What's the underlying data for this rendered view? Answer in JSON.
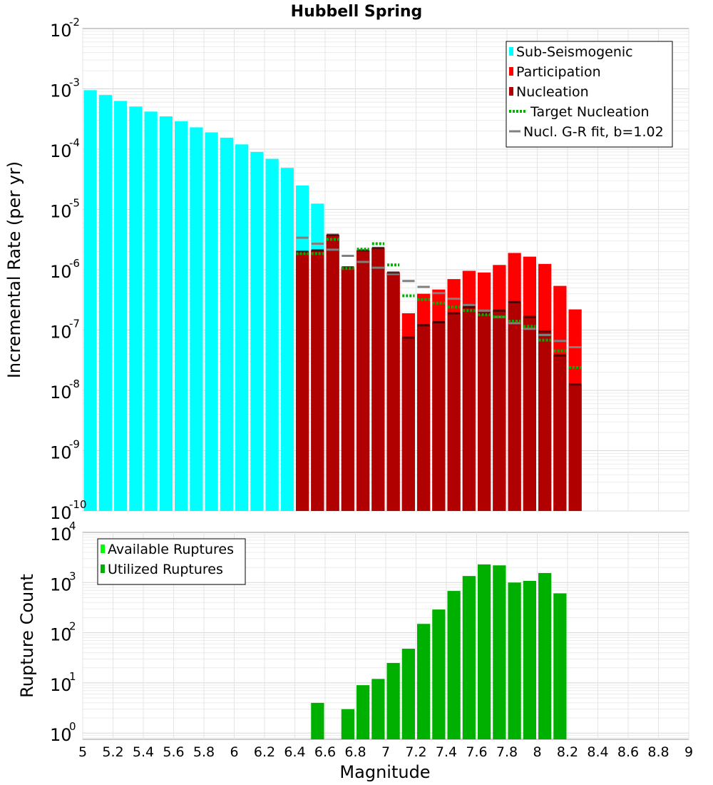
{
  "chart_data": [
    {
      "type": "bar",
      "title": "Hubbell Spring",
      "ylabel": "Incremental Rate (per yr)",
      "xlabel": "",
      "x_range": [
        5,
        9
      ],
      "ylim": [
        1e-10,
        0.01
      ],
      "y_scale": "log",
      "y_ticks": [
        {
          "base": "10",
          "exp": "-2",
          "value": 0.01
        },
        {
          "base": "10",
          "exp": "-3",
          "value": 0.001
        },
        {
          "base": "10",
          "exp": "-4",
          "value": 0.0001
        },
        {
          "base": "10",
          "exp": "-5",
          "value": 1e-05
        },
        {
          "base": "10",
          "exp": "-6",
          "value": 1e-06
        },
        {
          "base": "10",
          "exp": "-7",
          "value": 1e-07
        },
        {
          "base": "10",
          "exp": "-8",
          "value": 1e-08
        },
        {
          "base": "10",
          "exp": "-9",
          "value": 1e-09
        },
        {
          "base": "10",
          "exp": "-10",
          "value": 1e-10
        }
      ],
      "grid": true,
      "legend_position": "top-right",
      "legend": [
        {
          "label": "Sub-Seismogenic",
          "color": "#00ffff",
          "style": "bar"
        },
        {
          "label": "Participation",
          "color": "#ff0000",
          "style": "bar"
        },
        {
          "label": "Nucleation",
          "color": "#b00000",
          "style": "bar"
        },
        {
          "label": "Target Nucleation",
          "color": "#00b000",
          "style": "dotted"
        },
        {
          "label": "Nucl. G-R fit, b=1.02",
          "color": "#808080",
          "style": "line"
        }
      ],
      "colors": {
        "sub_seismogenic": "#00ffff",
        "participation": "#ff0000",
        "nucleation": "#b00000",
        "target": "#00b000",
        "gr_fit": "#808080",
        "nucl_marker": "#2a0000"
      },
      "bin_width": 0.1,
      "series": [
        {
          "id": "sub_seismogenic",
          "x": [
            5.05,
            5.15,
            5.25,
            5.35,
            5.45,
            5.55,
            5.65,
            5.75,
            5.85,
            5.95,
            6.05,
            6.15,
            6.25,
            6.35,
            6.45,
            6.55
          ],
          "values": [
            0.00095,
            0.00079,
            0.00063,
            0.00051,
            0.00042,
            0.00035,
            0.00029,
            0.00023,
            0.00019,
            0.000155,
            0.00012,
            9e-05,
            6.9e-05,
            4.9e-05,
            2.5e-05,
            1.25e-05
          ]
        },
        {
          "id": "participation",
          "x": [
            6.45,
            6.55,
            6.65,
            6.75,
            6.85,
            6.95,
            7.05,
            7.15,
            7.25,
            7.35,
            7.45,
            7.55,
            7.65,
            7.75,
            7.85,
            7.95,
            8.05,
            8.15,
            8.25
          ],
          "values": [
            2e-06,
            2.1e-06,
            3.8e-06,
            1.1e-06,
            2.1e-06,
            2.3e-06,
            9e-07,
            1.9e-07,
            4e-07,
            4.7e-07,
            7e-07,
            9.6e-07,
            9e-07,
            1.2e-06,
            1.9e-06,
            1.65e-06,
            1.25e-06,
            5.4e-07,
            2.2e-07
          ]
        },
        {
          "id": "nucleation",
          "x": [
            6.45,
            6.55,
            6.65,
            6.75,
            6.85,
            6.95,
            7.05,
            7.15,
            7.25,
            7.35,
            7.45,
            7.55,
            7.65,
            7.75,
            7.85,
            7.95,
            8.05,
            8.15,
            8.25
          ],
          "values": [
            2e-06,
            2.1e-06,
            3.8e-06,
            1.1e-06,
            2.1e-06,
            2.3e-06,
            9e-07,
            7.5e-08,
            1.2e-07,
            1.35e-07,
            1.9e-07,
            2.4e-07,
            1.9e-07,
            2.1e-07,
            2.9e-07,
            1.65e-07,
            9.5e-08,
            3.8e-08,
            1.25e-08
          ]
        },
        {
          "id": "target_nucleation",
          "x": [
            6.45,
            6.55,
            6.65,
            6.75,
            6.85,
            6.95,
            7.05,
            7.15,
            7.25,
            7.35,
            7.45,
            7.55,
            7.65,
            7.75,
            7.85,
            7.95,
            8.05,
            8.15,
            8.25
          ],
          "values": [
            1.85e-06,
            1.85e-06,
            3.2e-06,
            1.05e-06,
            2.2e-06,
            2.7e-06,
            1.2e-06,
            3.7e-07,
            3.2e-07,
            2.8e-07,
            2.4e-07,
            2.1e-07,
            1.8e-07,
            1.65e-07,
            1.4e-07,
            1.15e-07,
            6.8e-08,
            4.5e-08,
            2.4e-08
          ]
        },
        {
          "id": "gr_fit",
          "x": [
            6.45,
            6.55,
            6.65,
            6.75,
            6.85,
            6.95,
            7.05,
            7.15,
            7.25,
            7.35,
            7.45,
            7.55,
            7.65,
            7.75,
            7.85,
            7.95,
            8.05,
            8.15,
            8.25
          ],
          "values": [
            3.4e-06,
            2.7e-06,
            2.15e-06,
            1.7e-06,
            1.35e-06,
            1.08e-06,
            8.5e-07,
            6.5e-07,
            5.2e-07,
            4.1e-07,
            3.3e-07,
            2.6e-07,
            2.1e-07,
            1.65e-07,
            1.3e-07,
            1.05e-07,
            8.3e-08,
            6.6e-08,
            5.2e-08
          ]
        }
      ]
    },
    {
      "type": "bar",
      "title": "",
      "ylabel": "Rupture Count",
      "xlabel": "Magnitude",
      "x_range": [
        5,
        9
      ],
      "x_ticks": [
        "5",
        "5.2",
        "5.4",
        "5.6",
        "5.8",
        "6",
        "6.2",
        "6.4",
        "6.6",
        "6.8",
        "7",
        "7.2",
        "7.4",
        "7.6",
        "7.8",
        "8",
        "8.2",
        "8.4",
        "8.6",
        "8.8",
        "9"
      ],
      "ylim": [
        0.75,
        10000.0
      ],
      "y_scale": "log",
      "y_ticks": [
        {
          "base": "10",
          "exp": "4",
          "value": 10000.0
        },
        {
          "base": "10",
          "exp": "3",
          "value": 1000.0
        },
        {
          "base": "10",
          "exp": "2",
          "value": 100.0
        },
        {
          "base": "10",
          "exp": "1",
          "value": 10.0
        },
        {
          "base": "10",
          "exp": "0",
          "value": 1
        }
      ],
      "grid": true,
      "legend_position": "top-left",
      "legend": [
        {
          "label": "Available Ruptures",
          "color": "#00ff00",
          "style": "bar"
        },
        {
          "label": "Utilized Ruptures",
          "color": "#00b000",
          "style": "bar"
        }
      ],
      "colors": {
        "available": "#00ff00",
        "utilized": "#00b000"
      },
      "bin_width": 0.1,
      "series": [
        {
          "id": "utilized",
          "x": [
            6.55,
            6.75,
            6.85,
            6.95,
            7.05,
            7.15,
            7.25,
            7.35,
            7.45,
            7.55,
            7.65,
            7.75,
            7.85,
            7.95,
            8.05,
            8.15
          ],
          "values": [
            4,
            3,
            9,
            12,
            25,
            48,
            150,
            290,
            680,
            1350,
            2300,
            2200,
            1000,
            1080,
            1550,
            610
          ]
        }
      ]
    }
  ]
}
